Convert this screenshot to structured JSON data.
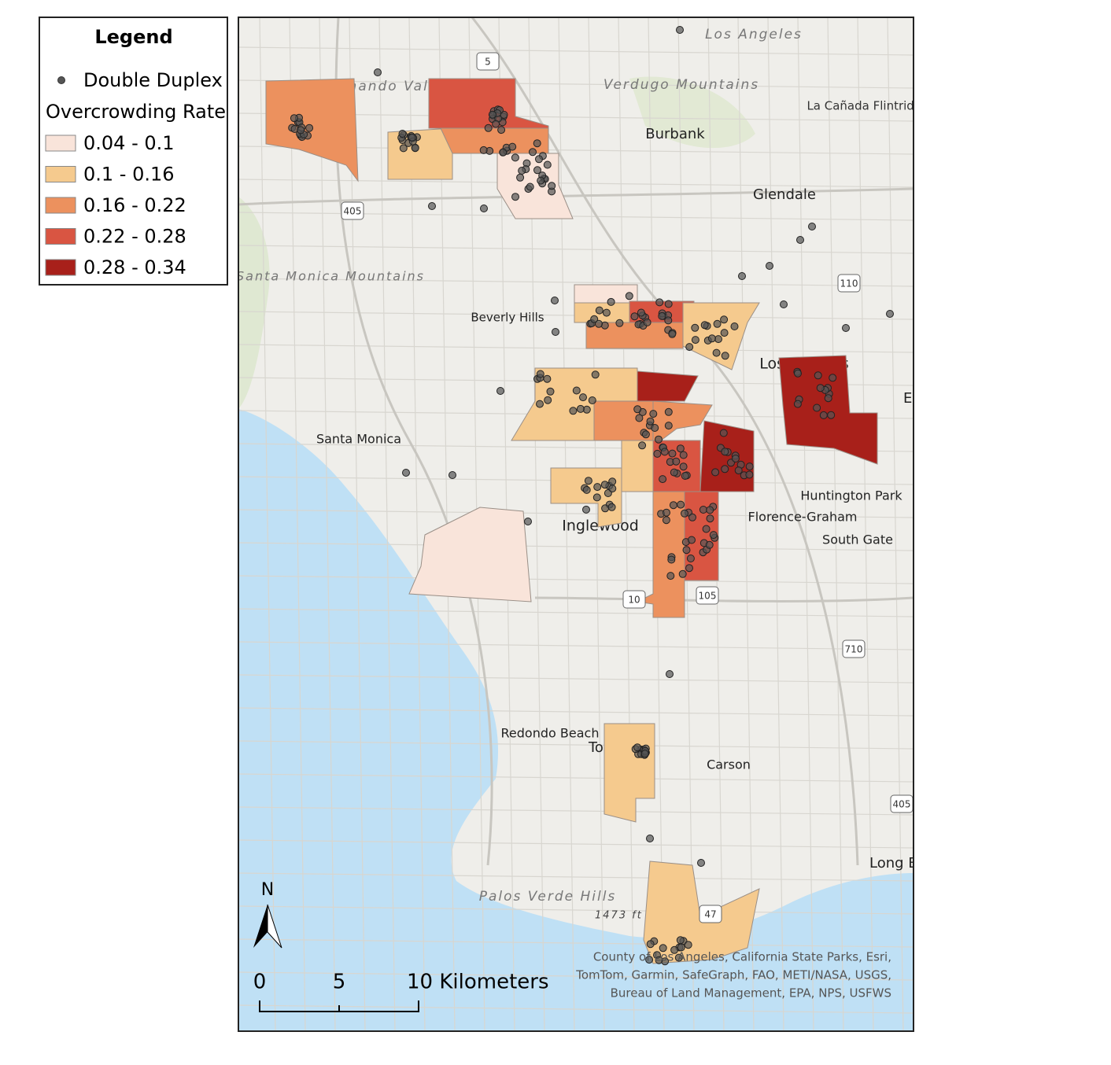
{
  "legend": {
    "title": "Legend",
    "points_label": "Double Duplex",
    "classes_title": "Overcrowding Rate",
    "point_color": "#555555",
    "classes": [
      {
        "label": "0.04 - 0.1",
        "color": "#f9e4da"
      },
      {
        "label": "0.1 - 0.16",
        "color": "#f5ca8e"
      },
      {
        "label": "0.16 - 0.22",
        "color": "#ec915e"
      },
      {
        "label": "0.22 - 0.28",
        "color": "#d95542"
      },
      {
        "label": "0.28 - 0.34",
        "color": "#a8201a"
      }
    ]
  },
  "map": {
    "places": [
      "Los Angeles",
      "San Fernando Valley",
      "Verdugo Mountains",
      "La Cañada Flintridge",
      "Burbank",
      "Glendale",
      "Santa Monica Mountains",
      "Beverly Hills",
      "Los Angeles",
      "East Los Angeles",
      "Santa Monica",
      "Huntington Park",
      "Florence-Graham",
      "Inglewood",
      "South Gate",
      "Redondo Beach",
      "Torrance",
      "Carson",
      "Long Beach",
      "Palos Verde Hills",
      "1473 ft"
    ],
    "highways": [
      "5",
      "405",
      "110",
      "10",
      "105",
      "710",
      "405",
      "47"
    ],
    "north": "N",
    "scale": [
      "0",
      "5",
      "10 Kilometers"
    ],
    "attribution": [
      "County of Los Angeles, California State Parks, Esri,",
      "TomTom, Garmin, SafeGraph, FAO, METI/NASA, USGS,",
      "Bureau of Land Management, EPA, NPS, USFWS"
    ]
  }
}
